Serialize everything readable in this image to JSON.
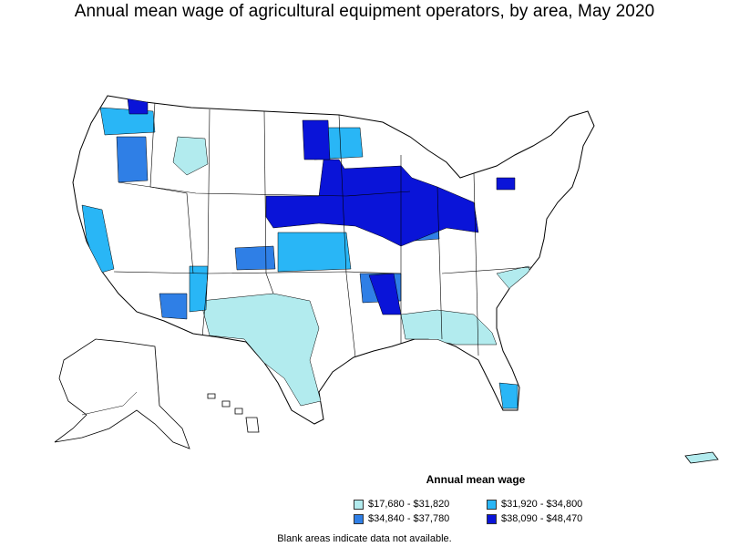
{
  "title": "Annual mean wage of agricultural equipment operators, by area, May 2020",
  "legend": {
    "title": "Annual mean wage",
    "items": [
      {
        "label": "$17,680 - $31,820",
        "color": "#b2ebee"
      },
      {
        "label": "$31,920 - $34,800",
        "color": "#29b6f6"
      },
      {
        "label": "$34,840 - $37,780",
        "color": "#2f7fe6"
      },
      {
        "label": "$38,090 - $48,470",
        "color": "#0a14d8"
      }
    ]
  },
  "footnote": "Blank areas indicate data not available.",
  "colors": {
    "outline": "#000000",
    "blank": "#ffffff"
  }
}
